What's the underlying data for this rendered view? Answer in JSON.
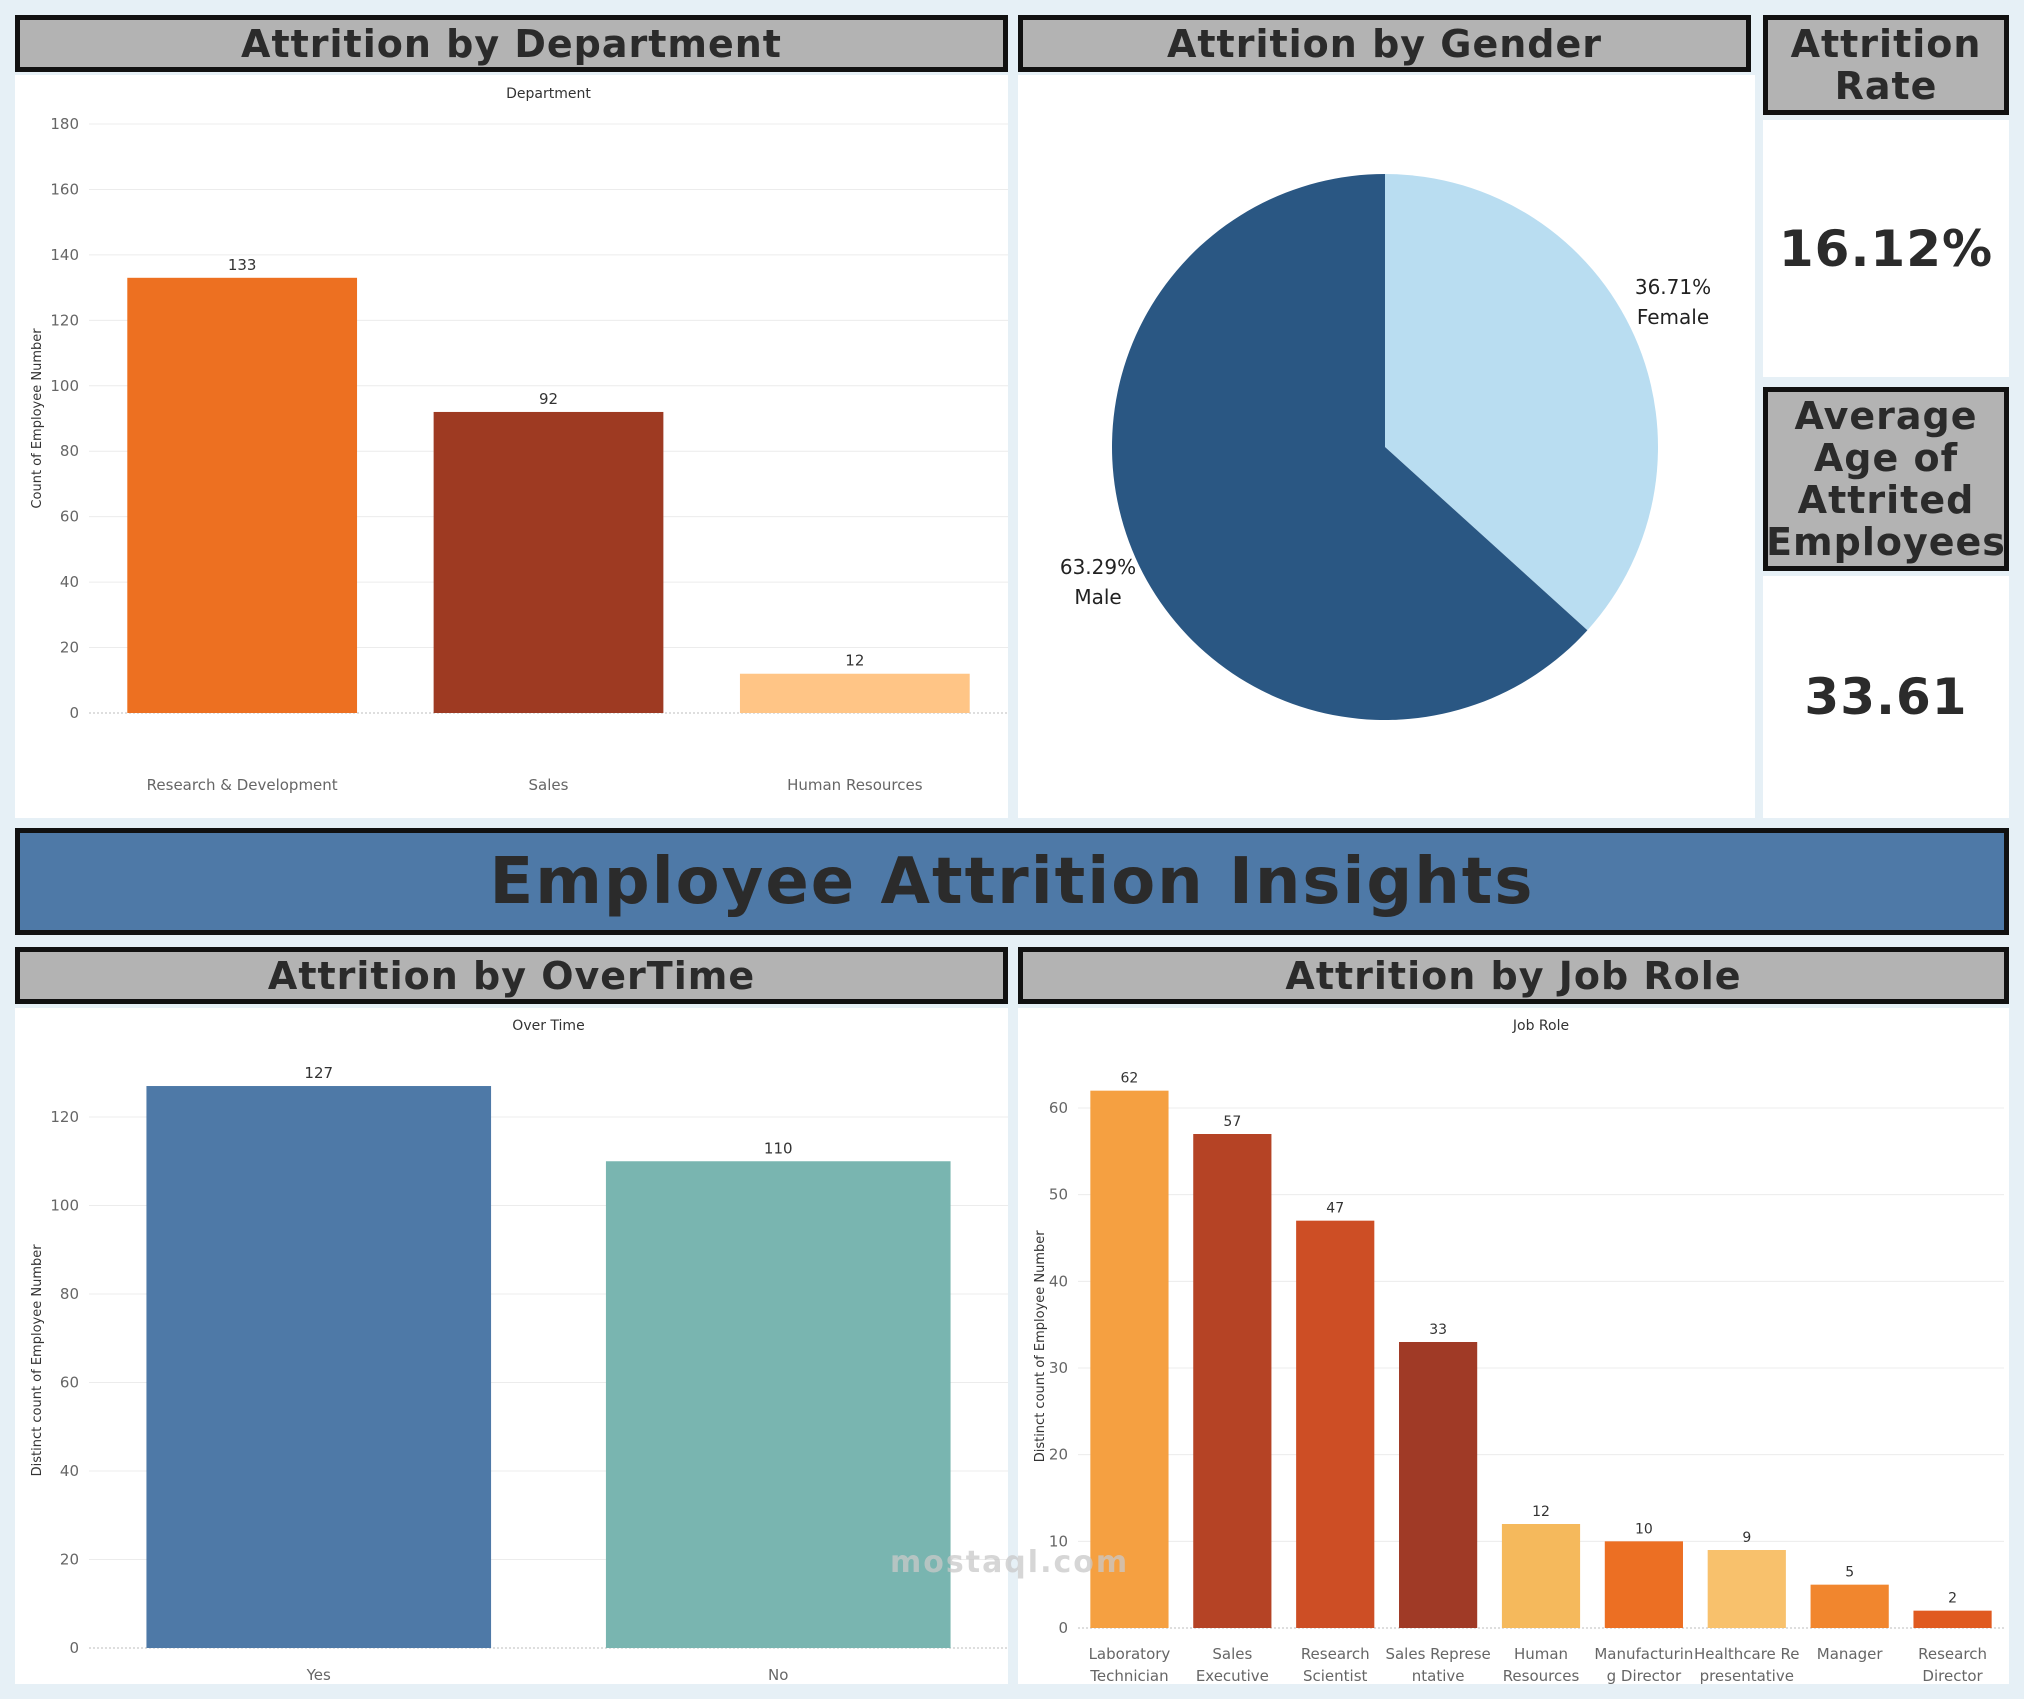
{
  "dashboard_title": "Employee Attrition Insights",
  "headers": {
    "department": "Attrition by Department",
    "gender": "Attrition by Gender",
    "overtime": "Attrition by OverTime",
    "job_role": "Attrition by Job Role"
  },
  "kpis": {
    "attrition_rate": {
      "label": "Attrition Rate",
      "value": "16.12%"
    },
    "average_age": {
      "label": "Average Age of Attrited Employees",
      "value": "33.61"
    }
  },
  "watermark": "mostaql.com",
  "colors": {
    "header_bg": "#b3b3b3",
    "title_bg": "#4e79a7",
    "page_bg": "#e6f0f6"
  },
  "chart_data": [
    {
      "id": "department",
      "type": "bar",
      "title": "Department",
      "ylabel": "Count of Employee Number",
      "xlabel": "",
      "categories": [
        "Research & Development",
        "Sales",
        "Human Resources"
      ],
      "values": [
        133,
        92,
        12
      ],
      "colors": [
        "#ed7021",
        "#9e3a22",
        "#ffc586"
      ],
      "ylim": [
        0,
        180
      ],
      "yticks": [
        0,
        20,
        40,
        60,
        80,
        100,
        120,
        140,
        160,
        180
      ]
    },
    {
      "id": "gender",
      "type": "pie",
      "title": "",
      "slices": [
        {
          "label": "Female",
          "percent": 36.71,
          "value_label": "36.71%",
          "color": "#b9ddf1"
        },
        {
          "label": "Male",
          "percent": 63.29,
          "value_label": "63.29%",
          "color": "#2a5783"
        }
      ]
    },
    {
      "id": "overtime",
      "type": "bar",
      "title": "Over Time",
      "ylabel": "Distinct count of Employee Number",
      "xlabel": "",
      "categories": [
        "Yes",
        "No"
      ],
      "values": [
        127,
        110
      ],
      "colors": [
        "#4e79a7",
        "#79b5b0"
      ],
      "ylim": [
        0,
        130
      ],
      "yticks": [
        0,
        20,
        40,
        60,
        80,
        100,
        120
      ]
    },
    {
      "id": "job_role",
      "type": "bar",
      "title": "Job Role",
      "ylabel": "Distinct count of Employee Number",
      "xlabel": "",
      "categories": [
        [
          "Laboratory",
          "Technician"
        ],
        [
          "Sales",
          "Executive"
        ],
        [
          "Research",
          "Scientist"
        ],
        [
          "Sales Represe",
          "ntative"
        ],
        [
          "Human",
          "Resources"
        ],
        [
          "Manufacturin",
          "g Director"
        ],
        [
          "Healthcare Re",
          "presentative"
        ],
        [
          "Manager"
        ],
        [
          "Research",
          "Director"
        ]
      ],
      "values": [
        62,
        57,
        47,
        33,
        12,
        10,
        9,
        5,
        2
      ],
      "colors": [
        "#f5a041",
        "#b54325",
        "#cd4e25",
        "#a03a26",
        "#f5b95c",
        "#ec6f23",
        "#f8c16c",
        "#f1862e",
        "#e05a20"
      ],
      "ylim": [
        0,
        65
      ],
      "yticks": [
        0,
        10,
        20,
        30,
        40,
        50,
        60
      ]
    }
  ]
}
